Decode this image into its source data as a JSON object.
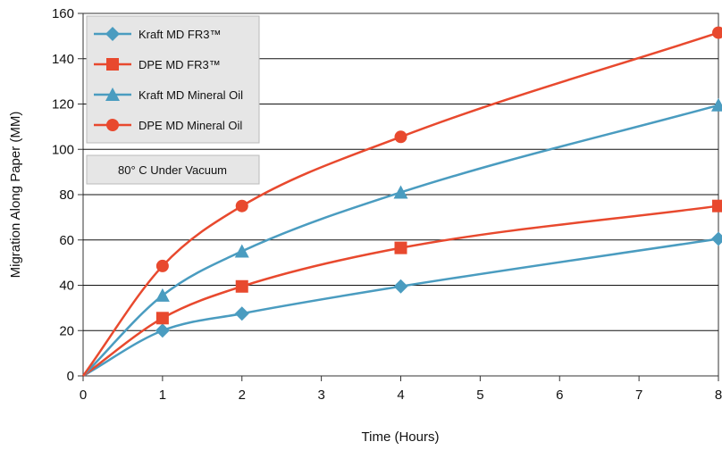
{
  "chart_data": {
    "type": "line",
    "title": "",
    "xlabel": "Time (Hours)",
    "ylabel": "Migration Along Paper (MM)",
    "xlim": [
      0,
      8
    ],
    "ylim": [
      0,
      160
    ],
    "x_ticks": [
      "0",
      "1",
      "2",
      "3",
      "4",
      "5",
      "6",
      "7",
      "8"
    ],
    "y_ticks": [
      "0",
      "20",
      "40",
      "60",
      "80",
      "100",
      "120",
      "140",
      "160"
    ],
    "grid": "horizontal",
    "legend_position": "top-left",
    "annotation": "80° C Under Vacuum",
    "series": [
      {
        "name": "Kraft MD FR3™",
        "marker": "diamond",
        "color": "#4a9cc0",
        "x": [
          0,
          1,
          2,
          4,
          8
        ],
        "y": [
          0,
          20,
          27.5,
          39.5,
          60.5
        ]
      },
      {
        "name": "DPE MD FR3™",
        "marker": "square",
        "color": "#e8492e",
        "x": [
          0,
          1,
          2,
          4,
          8
        ],
        "y": [
          0,
          25.5,
          39.5,
          56.5,
          75
        ]
      },
      {
        "name": "Kraft MD Mineral Oil",
        "marker": "triangle",
        "color": "#4a9cc0",
        "x": [
          0,
          1,
          2,
          4,
          8
        ],
        "y": [
          0,
          35.5,
          55,
          81,
          119.5
        ]
      },
      {
        "name": "DPE MD Mineral Oil",
        "marker": "circle",
        "color": "#e8492e",
        "x": [
          0,
          1,
          2,
          4,
          8
        ],
        "y": [
          0,
          48.5,
          75,
          105.5,
          151.5
        ]
      }
    ]
  }
}
